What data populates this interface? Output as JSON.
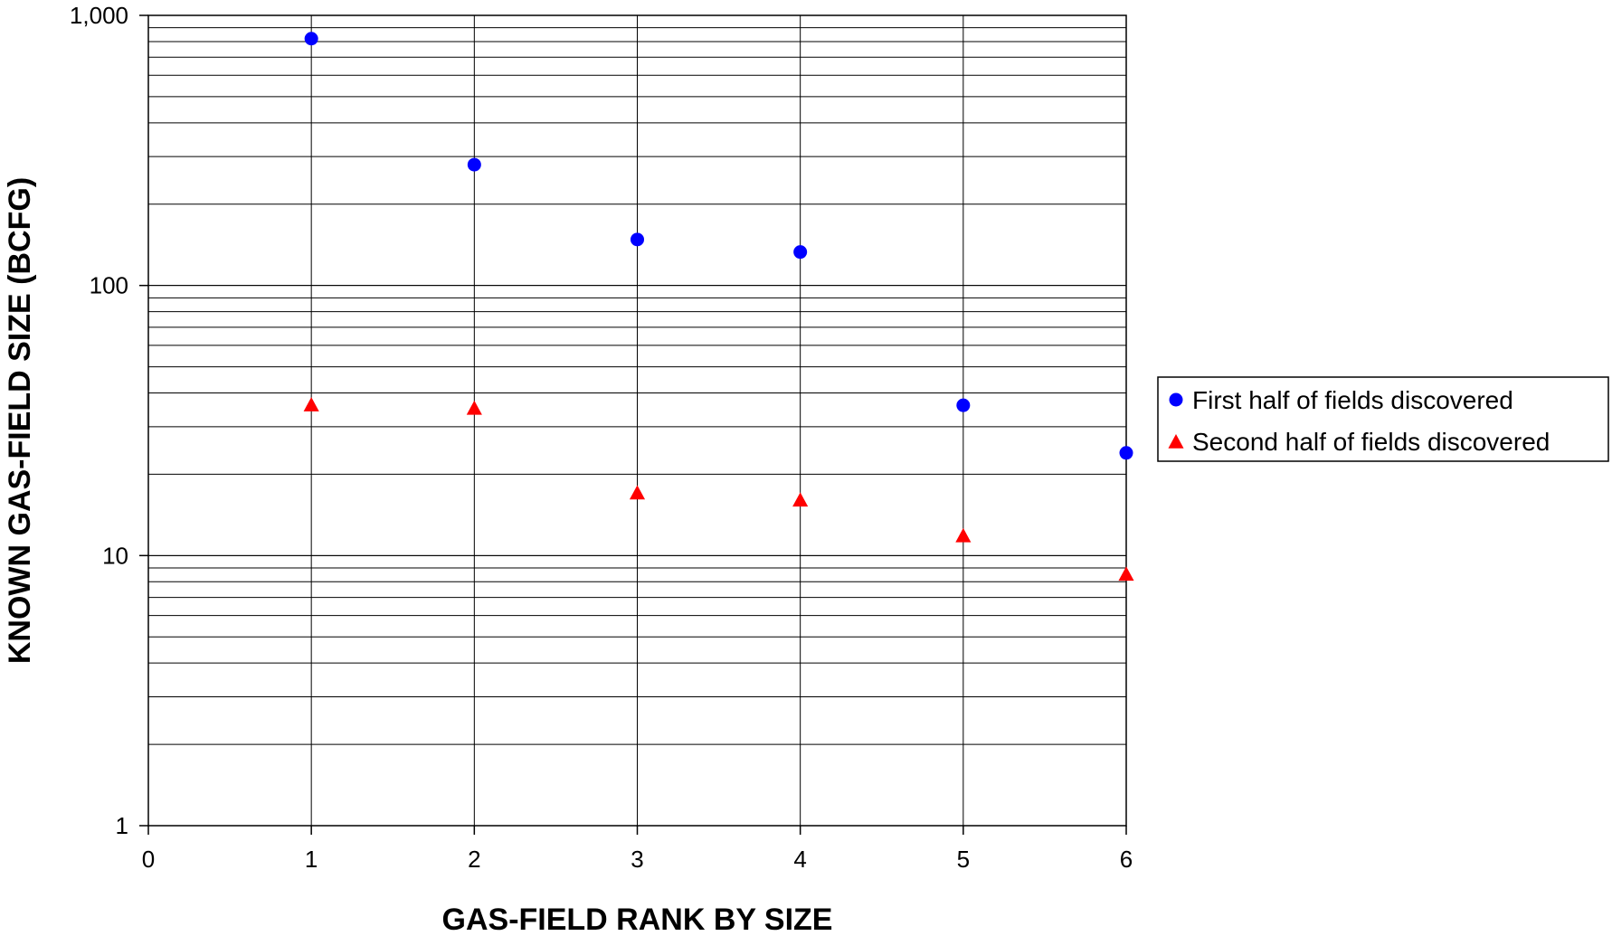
{
  "chart_data": {
    "type": "scatter",
    "title": "",
    "xlabel": "GAS-FIELD RANK BY SIZE",
    "ylabel": "KNOWN GAS-FIELD SIZE (BCFG)",
    "xlim": [
      0,
      6
    ],
    "ylim": [
      1,
      1000
    ],
    "yscale": "log",
    "x_ticks": [
      "0",
      "1",
      "2",
      "3",
      "4",
      "5",
      "6"
    ],
    "y_ticks": [
      "1",
      "10",
      "100",
      "1,000"
    ],
    "grid": true,
    "legend_position": "right",
    "series": [
      {
        "name": "First half of fields discovered",
        "marker": "circle",
        "color": "#0000ff",
        "x": [
          1,
          2,
          3,
          4,
          5,
          6
        ],
        "y": [
          820,
          280,
          148,
          133,
          36,
          24
        ]
      },
      {
        "name": "Second half of fields discovered",
        "marker": "triangle",
        "color": "#ff0000",
        "x": [
          1,
          2,
          3,
          4,
          5,
          6
        ],
        "y": [
          36,
          35,
          17,
          16,
          11.8,
          8.5
        ]
      }
    ]
  }
}
